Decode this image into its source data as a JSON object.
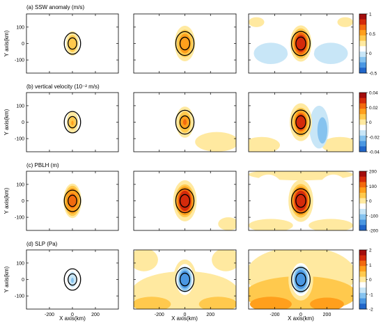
{
  "chart_data": {
    "type": "heatmap",
    "grid": "off",
    "legend": "colorbar-right",
    "x_ticks": [
      -200,
      0,
      200
    ],
    "y_ticks": [
      100,
      0,
      -100
    ],
    "xlim": [
      -400,
      400
    ],
    "ylim": [
      -180,
      180
    ],
    "xlabel": "X axis(km)",
    "ylabel": "Y axis(km)",
    "palette": [
      "#2166c9",
      "#4a97e2",
      "#86c3ef",
      "#c8e6f7",
      "#ffffff",
      "#ffe9a0",
      "#ffc94d",
      "#ff9f1c",
      "#f26a0f",
      "#d42a0b",
      "#a30d0d"
    ],
    "rows": [
      {
        "title": "(a) SSW anomaly (m/s)",
        "colorbar_ticks": [
          "1",
          "0.5",
          "0",
          "-0.5"
        ],
        "colorbar_range": [
          -0.5,
          1
        ],
        "panels": [
          {
            "blobs": [
              {
                "x": 0,
                "y": 0,
                "rx": 55,
                "ry": 75,
                "v": 0.2
              },
              {
                "x": 0,
                "y": 0,
                "rx": 40,
                "ry": 52,
                "v": 0.3
              }
            ],
            "rings": [
              {
                "rx": 75,
                "ry": 98
              },
              {
                "rx": 40,
                "ry": 52
              }
            ]
          },
          {
            "blobs": [
              {
                "x": 0,
                "y": 0,
                "rx": 80,
                "ry": 108,
                "v": 0.15
              },
              {
                "x": 0,
                "y": 0,
                "rx": 62,
                "ry": 84,
                "v": 0.3
              },
              {
                "x": 0,
                "y": 0,
                "rx": 45,
                "ry": 60,
                "v": 0.5
              }
            ],
            "rings": [
              {
                "rx": 75,
                "ry": 98
              },
              {
                "rx": 40,
                "ry": 52
              }
            ]
          },
          {
            "blobs": [
              {
                "x": -340,
                "y": 130,
                "rx": 60,
                "ry": 30,
                "v": 0.15
              },
              {
                "x": 340,
                "y": 130,
                "rx": 60,
                "ry": 30,
                "v": 0.15
              },
              {
                "x": -230,
                "y": -60,
                "rx": 130,
                "ry": 65,
                "v": -0.15
              },
              {
                "x": 230,
                "y": -60,
                "rx": 130,
                "ry": 65,
                "v": -0.15
              },
              {
                "x": 0,
                "y": 0,
                "rx": 110,
                "ry": 150,
                "v": -0.1
              },
              {
                "x": 0,
                "y": 0,
                "rx": 82,
                "ry": 110,
                "v": 0.15
              },
              {
                "x": 0,
                "y": 0,
                "rx": 68,
                "ry": 92,
                "v": 0.4
              },
              {
                "x": 0,
                "y": 0,
                "rx": 58,
                "ry": 78,
                "v": 0.55
              },
              {
                "x": 0,
                "y": 0,
                "rx": 50,
                "ry": 66,
                "v": 0.7
              },
              {
                "x": 0,
                "y": 0,
                "rx": 40,
                "ry": 52,
                "v": 0.85
              }
            ],
            "rings": [
              {
                "rx": 75,
                "ry": 98
              },
              {
                "rx": 40,
                "ry": 52
              }
            ]
          }
        ]
      },
      {
        "title": "(b) vertical velocity (10⁻² m/s)",
        "colorbar_ticks": [
          "0.04",
          "0.02",
          "0",
          "-0.02",
          "-0.04"
        ],
        "colorbar_range": [
          -0.04,
          0.04
        ],
        "panels": [
          {
            "blobs": [
              {
                "x": 0,
                "y": 0,
                "rx": 50,
                "ry": 68,
                "v": 0.005
              },
              {
                "x": 0,
                "y": -5,
                "rx": 30,
                "ry": 40,
                "v": 0.01
              },
              {
                "x": 0,
                "y": -5,
                "rx": 10,
                "ry": 14,
                "v": 0.02
              }
            ],
            "rings": [
              {
                "rx": 75,
                "ry": 98
              },
              {
                "rx": 40,
                "ry": 52
              }
            ]
          },
          {
            "blobs": [
              {
                "x": -280,
                "y": 80,
                "rx": 140,
                "ry": 90,
                "v": -0.003
              },
              {
                "x": 250,
                "y": -120,
                "rx": 170,
                "ry": 60,
                "v": 0.004
              },
              {
                "x": 90,
                "y": 40,
                "rx": 40,
                "ry": 100,
                "v": -0.004
              },
              {
                "x": 0,
                "y": 0,
                "rx": 70,
                "ry": 95,
                "v": 0.005
              },
              {
                "x": 0,
                "y": 0,
                "rx": 48,
                "ry": 65,
                "v": 0.01
              },
              {
                "x": 0,
                "y": 0,
                "rx": 30,
                "ry": 42,
                "v": 0.02
              },
              {
                "x": 0,
                "y": 0,
                "rx": 14,
                "ry": 18,
                "v": 0.03
              }
            ],
            "rings": [
              {
                "rx": 75,
                "ry": 98
              },
              {
                "rx": 40,
                "ry": 52
              }
            ]
          },
          {
            "blobs": [
              {
                "x": 0,
                "y": 40,
                "rx": 390,
                "ry": 160,
                "v": -0.004
              },
              {
                "x": -300,
                "y": -140,
                "rx": 140,
                "ry": 50,
                "v": 0.004
              },
              {
                "x": 300,
                "y": -140,
                "rx": 140,
                "ry": 50,
                "v": 0.004
              },
              {
                "x": 140,
                "y": -30,
                "rx": 75,
                "ry": 130,
                "v": -0.012
              },
              {
                "x": 155,
                "y": -40,
                "rx": 55,
                "ry": 110,
                "v": -0.02
              },
              {
                "x": 165,
                "y": -50,
                "rx": 38,
                "ry": 80,
                "v": -0.03
              },
              {
                "x": -130,
                "y": -20,
                "rx": 45,
                "ry": 80,
                "v": -0.006
              },
              {
                "x": 0,
                "y": 0,
                "rx": 85,
                "ry": 115,
                "v": 0.004
              },
              {
                "x": 0,
                "y": 0,
                "rx": 65,
                "ry": 88,
                "v": 0.012
              },
              {
                "x": 0,
                "y": 0,
                "rx": 52,
                "ry": 70,
                "v": 0.02
              },
              {
                "x": 0,
                "y": 0,
                "rx": 42,
                "ry": 56,
                "v": 0.03
              },
              {
                "x": 0,
                "y": 0,
                "rx": 36,
                "ry": 47,
                "v": 0.036
              }
            ],
            "rings": [
              {
                "rx": 75,
                "ry": 98
              },
              {
                "rx": 40,
                "ry": 52
              }
            ]
          }
        ]
      },
      {
        "title": "(c) PBLH (m)",
        "colorbar_ticks": [
          "200",
          "100",
          "0",
          "-100",
          "-200"
        ],
        "colorbar_range": [
          -200,
          200
        ],
        "panels": [
          {
            "blobs": [
              {
                "x": -185,
                "y": -10,
                "rx": 45,
                "ry": 120,
                "v": -25
              },
              {
                "x": 185,
                "y": -10,
                "rx": 45,
                "ry": 120,
                "v": -25
              },
              {
                "x": 0,
                "y": 0,
                "rx": 78,
                "ry": 105,
                "v": 20
              },
              {
                "x": 0,
                "y": 0,
                "rx": 68,
                "ry": 92,
                "v": 50
              },
              {
                "x": 0,
                "y": 0,
                "rx": 58,
                "ry": 78,
                "v": 90
              },
              {
                "x": 0,
                "y": 0,
                "rx": 48,
                "ry": 64,
                "v": 120
              },
              {
                "x": 0,
                "y": 0,
                "rx": 35,
                "ry": 46,
                "v": 150
              }
            ],
            "rings": [
              {
                "rx": 75,
                "ry": 98
              },
              {
                "rx": 40,
                "ry": 52
              }
            ]
          },
          {
            "blobs": [
              {
                "x": -260,
                "y": 30,
                "rx": 130,
                "ry": 170,
                "v": -25
              },
              {
                "x": 260,
                "y": 30,
                "rx": 130,
                "ry": 170,
                "v": -25
              },
              {
                "x": 340,
                "y": -140,
                "rx": 80,
                "ry": 40,
                "v": 20
              },
              {
                "x": 0,
                "y": 0,
                "rx": 92,
                "ry": 125,
                "v": 20
              },
              {
                "x": 0,
                "y": 0,
                "rx": 75,
                "ry": 100,
                "v": 60
              },
              {
                "x": 0,
                "y": 0,
                "rx": 65,
                "ry": 88,
                "v": 100
              },
              {
                "x": 0,
                "y": 0,
                "rx": 56,
                "ry": 75,
                "v": 140
              },
              {
                "x": 0,
                "y": 0,
                "rx": 46,
                "ry": 62,
                "v": 175
              }
            ],
            "rings": [
              {
                "rx": 75,
                "ry": 98
              },
              {
                "rx": 40,
                "ry": 52
              }
            ]
          },
          {
            "blobs": [
              {
                "x": 0,
                "y": 160,
                "rx": 400,
                "ry": 35,
                "v": 20
              },
              {
                "x": -250,
                "y": 10,
                "rx": 140,
                "ry": 150,
                "v": -25
              },
              {
                "x": 250,
                "y": 10,
                "rx": 140,
                "ry": 150,
                "v": -25
              },
              {
                "x": -230,
                "y": -150,
                "rx": 170,
                "ry": 40,
                "v": 20
              },
              {
                "x": 230,
                "y": -150,
                "rx": 170,
                "ry": 40,
                "v": 20
              },
              {
                "x": 0,
                "y": 0,
                "rx": 95,
                "ry": 128,
                "v": 20
              },
              {
                "x": 0,
                "y": 0,
                "rx": 76,
                "ry": 102,
                "v": 60
              },
              {
                "x": 0,
                "y": 0,
                "rx": 66,
                "ry": 88,
                "v": 100
              },
              {
                "x": 0,
                "y": 0,
                "rx": 57,
                "ry": 76,
                "v": 140
              },
              {
                "x": 0,
                "y": 0,
                "rx": 47,
                "ry": 62,
                "v": 175
              }
            ],
            "rings": [
              {
                "rx": 75,
                "ry": 98
              },
              {
                "rx": 40,
                "ry": 52
              }
            ]
          }
        ]
      },
      {
        "title": "(d) SLP (Pa)",
        "colorbar_ticks": [
          "2",
          "1",
          "0",
          "-1",
          "-2"
        ],
        "colorbar_range": [
          -2,
          2
        ],
        "panels": [
          {
            "blobs": [
              {
                "x": 0,
                "y": 0,
                "rx": 62,
                "ry": 82,
                "v": -0.2
              },
              {
                "x": 0,
                "y": 0,
                "rx": 48,
                "ry": 64,
                "v": -0.5
              },
              {
                "x": 0,
                "y": 0,
                "rx": 36,
                "ry": 48,
                "v": -0.8
              },
              {
                "x": 0,
                "y": -5,
                "rx": 12,
                "ry": 16,
                "v": -1.2
              }
            ],
            "rings": [
              {
                "rx": 75,
                "ry": 98
              },
              {
                "rx": 40,
                "ry": 52
              }
            ]
          },
          {
            "blobs": [
              {
                "x": 0,
                "y": -80,
                "rx": 420,
                "ry": 130,
                "v": 0.3
              },
              {
                "x": -320,
                "y": 120,
                "rx": 110,
                "ry": 70,
                "v": 0.3
              },
              {
                "x": 320,
                "y": 120,
                "rx": 110,
                "ry": 70,
                "v": 0.3
              },
              {
                "x": -260,
                "y": -150,
                "rx": 150,
                "ry": 45,
                "v": 0.8
              },
              {
                "x": 260,
                "y": -150,
                "rx": 150,
                "ry": 45,
                "v": 0.8
              },
              {
                "x": 0,
                "y": 0,
                "rx": 90,
                "ry": 122,
                "v": 0.01
              },
              {
                "x": 0,
                "y": 0,
                "rx": 70,
                "ry": 94,
                "v": -0.3
              },
              {
                "x": 0,
                "y": 0,
                "rx": 60,
                "ry": 80,
                "v": -0.8
              },
              {
                "x": 0,
                "y": 0,
                "rx": 50,
                "ry": 67,
                "v": -1.2
              },
              {
                "x": 0,
                "y": 0,
                "rx": 40,
                "ry": 54,
                "v": -1.6
              }
            ],
            "rings": [
              {
                "rx": 75,
                "ry": 98
              },
              {
                "rx": 40,
                "ry": 52
              }
            ]
          },
          {
            "blobs": [
              {
                "x": 0,
                "y": 30,
                "rx": 420,
                "ry": 170,
                "v": 0.3
              },
              {
                "x": 0,
                "y": -90,
                "rx": 430,
                "ry": 110,
                "v": 0.8
              },
              {
                "x": -230,
                "y": -150,
                "rx": 160,
                "ry": 45,
                "v": 1.2
              },
              {
                "x": 200,
                "y": -150,
                "rx": 130,
                "ry": 40,
                "v": 1.2
              },
              {
                "x": 0,
                "y": 0,
                "rx": 95,
                "ry": 128,
                "v": 0.01
              },
              {
                "x": 0,
                "y": 0,
                "rx": 74,
                "ry": 100,
                "v": -0.3
              },
              {
                "x": 0,
                "y": 0,
                "rx": 64,
                "ry": 86,
                "v": -0.8
              },
              {
                "x": 0,
                "y": 0,
                "rx": 54,
                "ry": 72,
                "v": -1.2
              },
              {
                "x": 0,
                "y": 0,
                "rx": 44,
                "ry": 58,
                "v": -1.6
              }
            ],
            "rings": [
              {
                "rx": 75,
                "ry": 98
              },
              {
                "rx": 40,
                "ry": 52
              }
            ]
          }
        ]
      }
    ]
  }
}
